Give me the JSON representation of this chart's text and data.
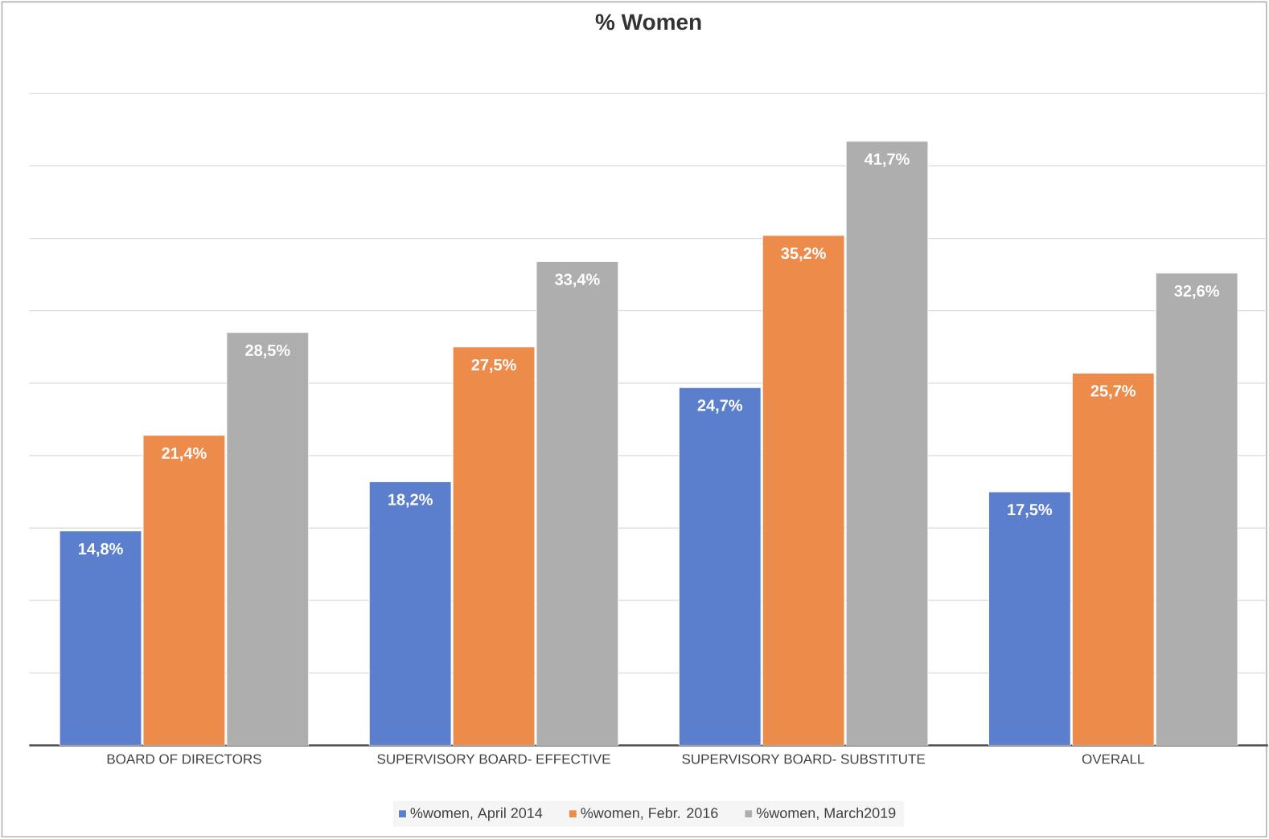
{
  "chart_data": {
    "type": "bar",
    "title": "% Women",
    "categories": [
      "BOARD OF DIRECTORS",
      "SUPERVISORY BOARD- EFFECTIVE",
      "SUPERVISORY BOARD- SUBSTITUTE",
      "OVERALL"
    ],
    "series": [
      {
        "name": "%women, April 2014",
        "color": "#5b7fcc",
        "values": [
          14.8,
          18.2,
          24.7,
          17.5
        ],
        "value_labels": [
          "14,8%",
          "18,2%",
          "24,7%",
          "17,5%"
        ]
      },
      {
        "name": "%women, Febr. 2016",
        "color": "#ed8b4b",
        "values": [
          21.4,
          27.5,
          35.2,
          25.7
        ],
        "value_labels": [
          "21,4%",
          "27,5%",
          "35,2%",
          "25,7%"
        ]
      },
      {
        "name": "%women, March2019",
        "color": "#aeaeae",
        "values": [
          28.5,
          33.4,
          41.7,
          32.6
        ],
        "value_labels": [
          "28,5%",
          "33,4%",
          "41,7%",
          "32,6%"
        ]
      }
    ],
    "ylim": [
      0,
      45
    ],
    "yticks": [
      {
        "value": 0,
        "label": null
      },
      {
        "value": 5,
        "label": null
      },
      {
        "value": 10,
        "label": null
      },
      {
        "value": 15,
        "label": null
      },
      {
        "value": 20,
        "label": null
      },
      {
        "value": 25,
        "label": null
      },
      {
        "value": 30,
        "label": null
      },
      {
        "value": 35,
        "label": null
      },
      {
        "value": 40,
        "label": null
      },
      {
        "value": 45,
        "label": null
      }
    ],
    "tick_labels": "x",
    "grid": "y",
    "legend": "bottom"
  }
}
